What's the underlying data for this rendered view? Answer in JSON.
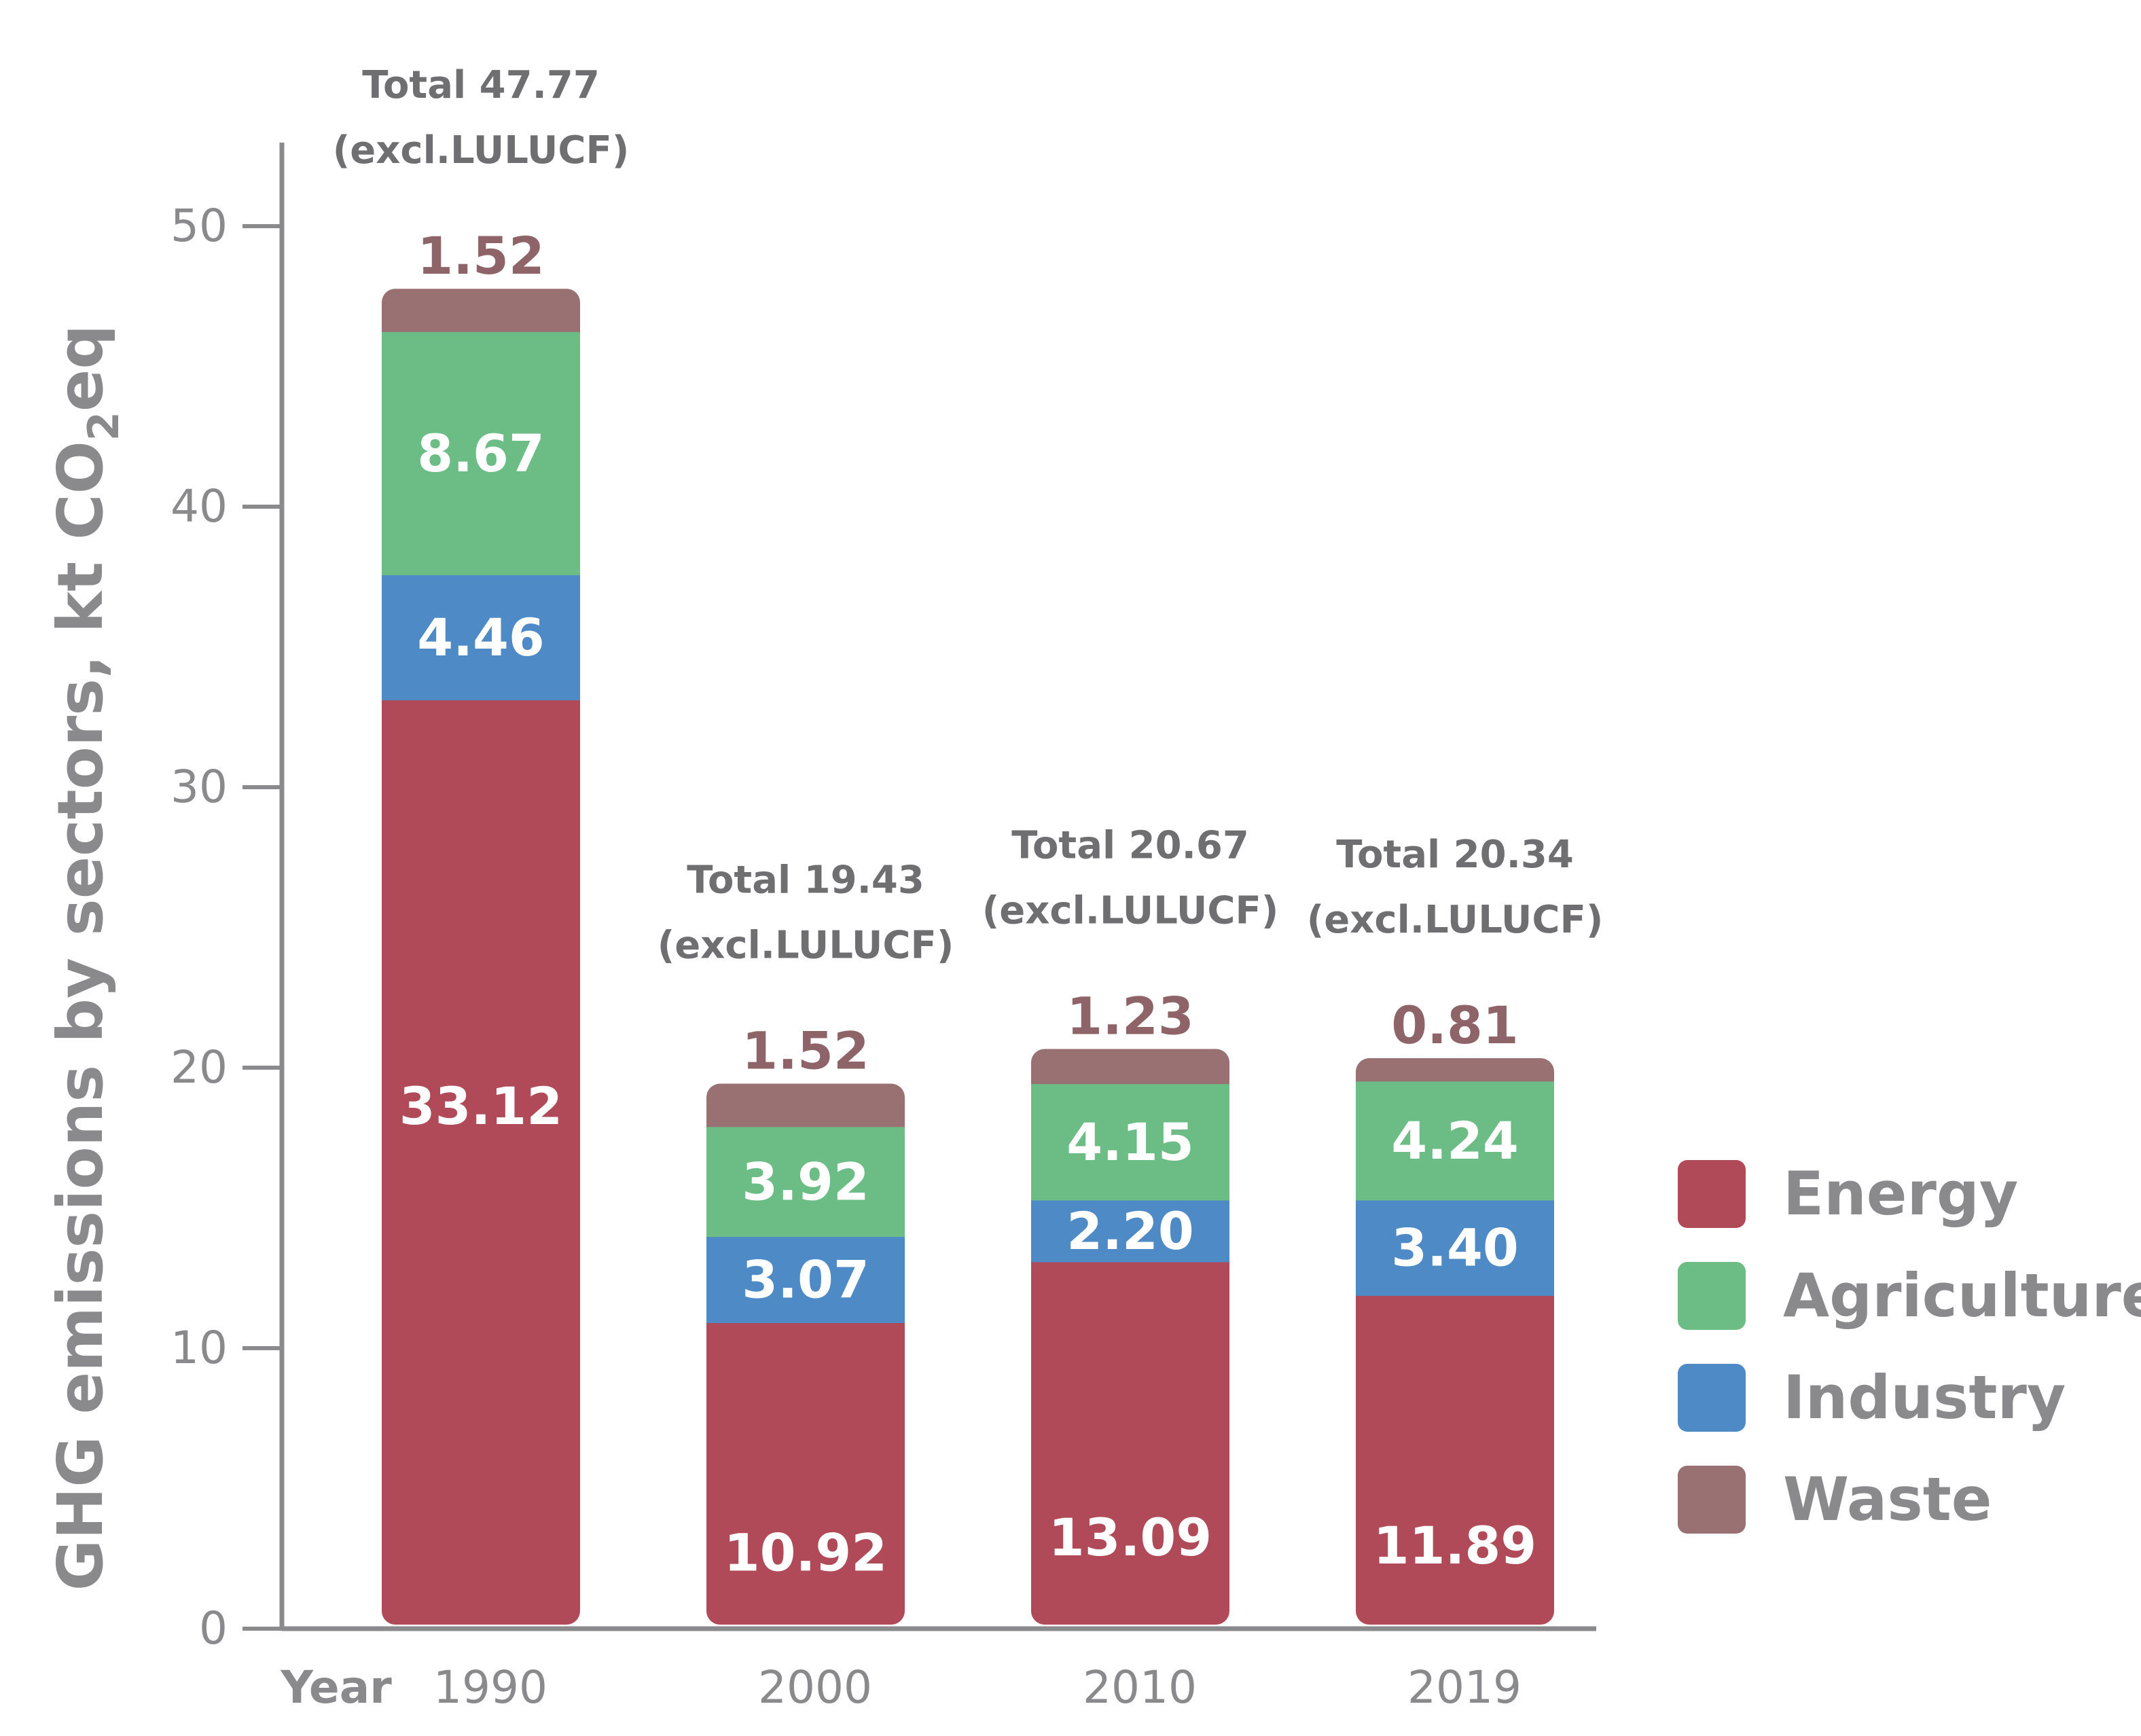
{
  "chart_data": {
    "type": "bar",
    "stacked": true,
    "categories": [
      "1990",
      "2000",
      "2010",
      "2019"
    ],
    "series": [
      {
        "name": "Energy",
        "color": "#b04a58",
        "values": [
          33.12,
          10.92,
          13.09,
          11.89
        ],
        "labels": [
          "33.12",
          "10.92",
          "13.09",
          "11.89"
        ]
      },
      {
        "name": "Industry",
        "color": "#4d8ac6",
        "values": [
          4.46,
          3.07,
          2.2,
          3.4
        ],
        "labels": [
          "4.46",
          "3.07",
          "2.20",
          "3.40"
        ]
      },
      {
        "name": "Agriculture",
        "color": "#6bbd85",
        "values": [
          8.67,
          3.92,
          4.15,
          4.24
        ],
        "labels": [
          "8.67",
          "3.92",
          "4.15",
          "4.24"
        ]
      },
      {
        "name": "Waste",
        "color": "#9a7173",
        "values": [
          1.52,
          1.52,
          1.23,
          0.81
        ],
        "labels": [
          "1.52",
          "1.52",
          "1.23",
          "0.81"
        ]
      }
    ],
    "totals": [
      {
        "line1": "Total 47.77",
        "line2": "(excl.LULUCF)"
      },
      {
        "line1": "Total 19.43",
        "line2": "(excl.LULUCF)"
      },
      {
        "line1": "Total 20.67",
        "line2": "(excl.LULUCF)"
      },
      {
        "line1": "Total 20.34",
        "line2": "(excl.LULUCF)"
      }
    ],
    "ylabel_main": "GHG emissions by sectors, kt CO",
    "ylabel_sub": "2",
    "ylabel_end": "eq",
    "xlabel": "Year",
    "ylim": [
      0,
      50
    ],
    "yticks": [
      0,
      10,
      20,
      30,
      40,
      50
    ],
    "grid": false,
    "legend_position": "right",
    "legend_order": [
      "Energy",
      "Agriculture",
      "Industry",
      "Waste"
    ]
  }
}
